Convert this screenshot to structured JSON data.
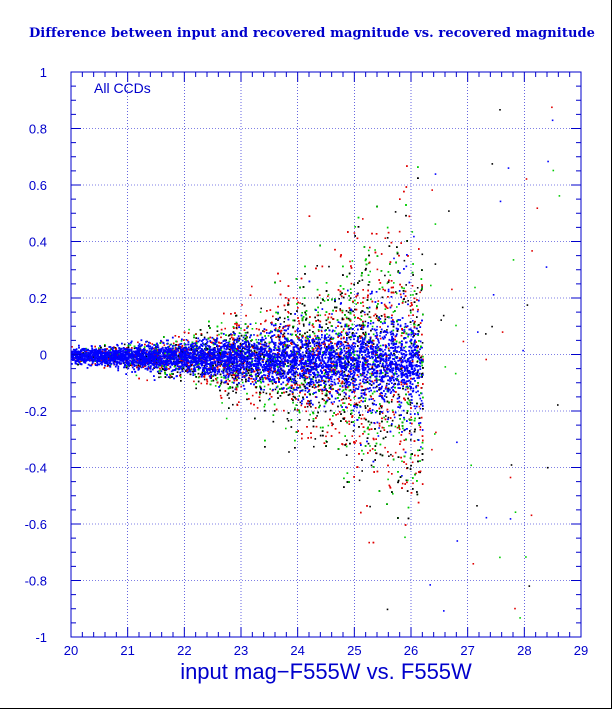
{
  "chart_data": {
    "type": "scatter",
    "title": "Difference between input and recovered magnitude vs. recovered magnitude",
    "xlabel": "input mag−F555W vs. F555W",
    "ylabel": "",
    "annotation": "All CCDs",
    "xlim": [
      20,
      29
    ],
    "ylim": [
      -1,
      1
    ],
    "xticks": [
      "20",
      "21",
      "22",
      "23",
      "24",
      "25",
      "26",
      "27",
      "28",
      "29"
    ],
    "yticks": [
      "-1",
      "-0.8",
      "-0.6",
      "-0.4",
      "-0.2",
      "0",
      "0.2",
      "0.4",
      "0.6",
      "0.8",
      "1"
    ],
    "grid": true,
    "colors": {
      "axis": "#0000cc",
      "grid": "#0000cc",
      "series": [
        "#000000",
        "#e00000",
        "#00cc00",
        "#0000ff"
      ]
    },
    "distribution": {
      "x_range": [
        20,
        26.25
      ],
      "x_cutoff": 26.2,
      "center_offset_at_cutoff": -0.03,
      "scatter_sigma_at_start": 0.015,
      "scatter_sigma_at_cutoff": 0.3,
      "density_peak_x": 24.8
    }
  }
}
